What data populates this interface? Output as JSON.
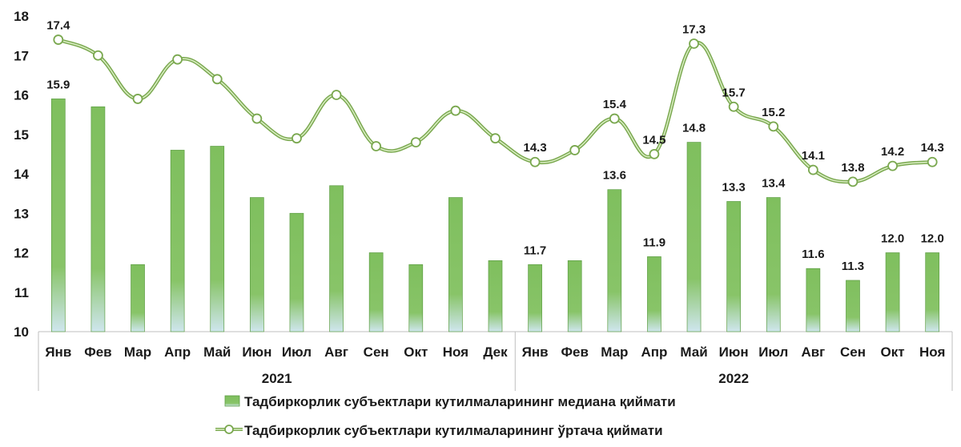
{
  "chart_data": {
    "type": "bar+line",
    "ylim": [
      10,
      18
    ],
    "yticks": [
      10,
      11,
      12,
      13,
      14,
      15,
      16,
      17,
      18
    ],
    "categories": [
      "Янв",
      "Фев",
      "Мар",
      "Апр",
      "Май",
      "Июн",
      "Июл",
      "Авг",
      "Сен",
      "Окт",
      "Ноя",
      "Дек",
      "Янв",
      "Фев",
      "Мар",
      "Апр",
      "Май",
      "Июн",
      "Июл",
      "Авг",
      "Сен",
      "Окт",
      "Ноя"
    ],
    "groups": [
      {
        "label": "2021",
        "start": 0,
        "end": 11
      },
      {
        "label": "2022",
        "start": 12,
        "end": 22
      }
    ],
    "series": [
      {
        "name": "Тадбиркорлик субъектлари кутилмаларининг медиана қиймати",
        "kind": "bar",
        "values": [
          15.9,
          15.7,
          11.7,
          14.6,
          14.7,
          13.4,
          13.0,
          13.7,
          12.0,
          11.7,
          13.4,
          11.8,
          11.7,
          11.8,
          13.6,
          11.9,
          14.8,
          13.3,
          13.4,
          11.6,
          11.3,
          12.0,
          12.0
        ],
        "labels": [
          "15.9",
          "",
          "",
          "",
          "",
          "",
          "",
          "",
          "",
          "",
          "",
          "",
          "11.7",
          "",
          "13.6",
          "11.9",
          "14.8",
          "13.3",
          "13.4",
          "11.6",
          "11.3",
          "12.0",
          "12.0"
        ]
      },
      {
        "name": "Тадбиркорлик субъектлари кутилмаларининг ўртача қиймати",
        "kind": "line",
        "values": [
          17.4,
          17.0,
          15.9,
          16.9,
          16.4,
          15.4,
          14.9,
          16.0,
          14.7,
          14.8,
          15.6,
          14.9,
          14.3,
          14.6,
          15.4,
          14.5,
          17.3,
          15.7,
          15.2,
          14.1,
          13.8,
          14.2,
          14.3
        ],
        "labels": [
          "17.4",
          "",
          "",
          "",
          "",
          "",
          "",
          "",
          "",
          "",
          "",
          "",
          "14.3",
          "",
          "15.4",
          "14.5",
          "17.3",
          "15.7",
          "15.2",
          "14.1",
          "13.8",
          "14.2",
          "14.3"
        ]
      }
    ],
    "colors": {
      "bar_top": "#7fbf5e",
      "bar_bottom": "#cfe6ee",
      "bar_stroke": "#5e9e45",
      "line_outer": "#7aa84f",
      "line_inner": "#d7ecc0",
      "marker_fill": "#ffffff",
      "axis": "#bfbfbf"
    },
    "legend_position": "bottom",
    "grid": false
  }
}
